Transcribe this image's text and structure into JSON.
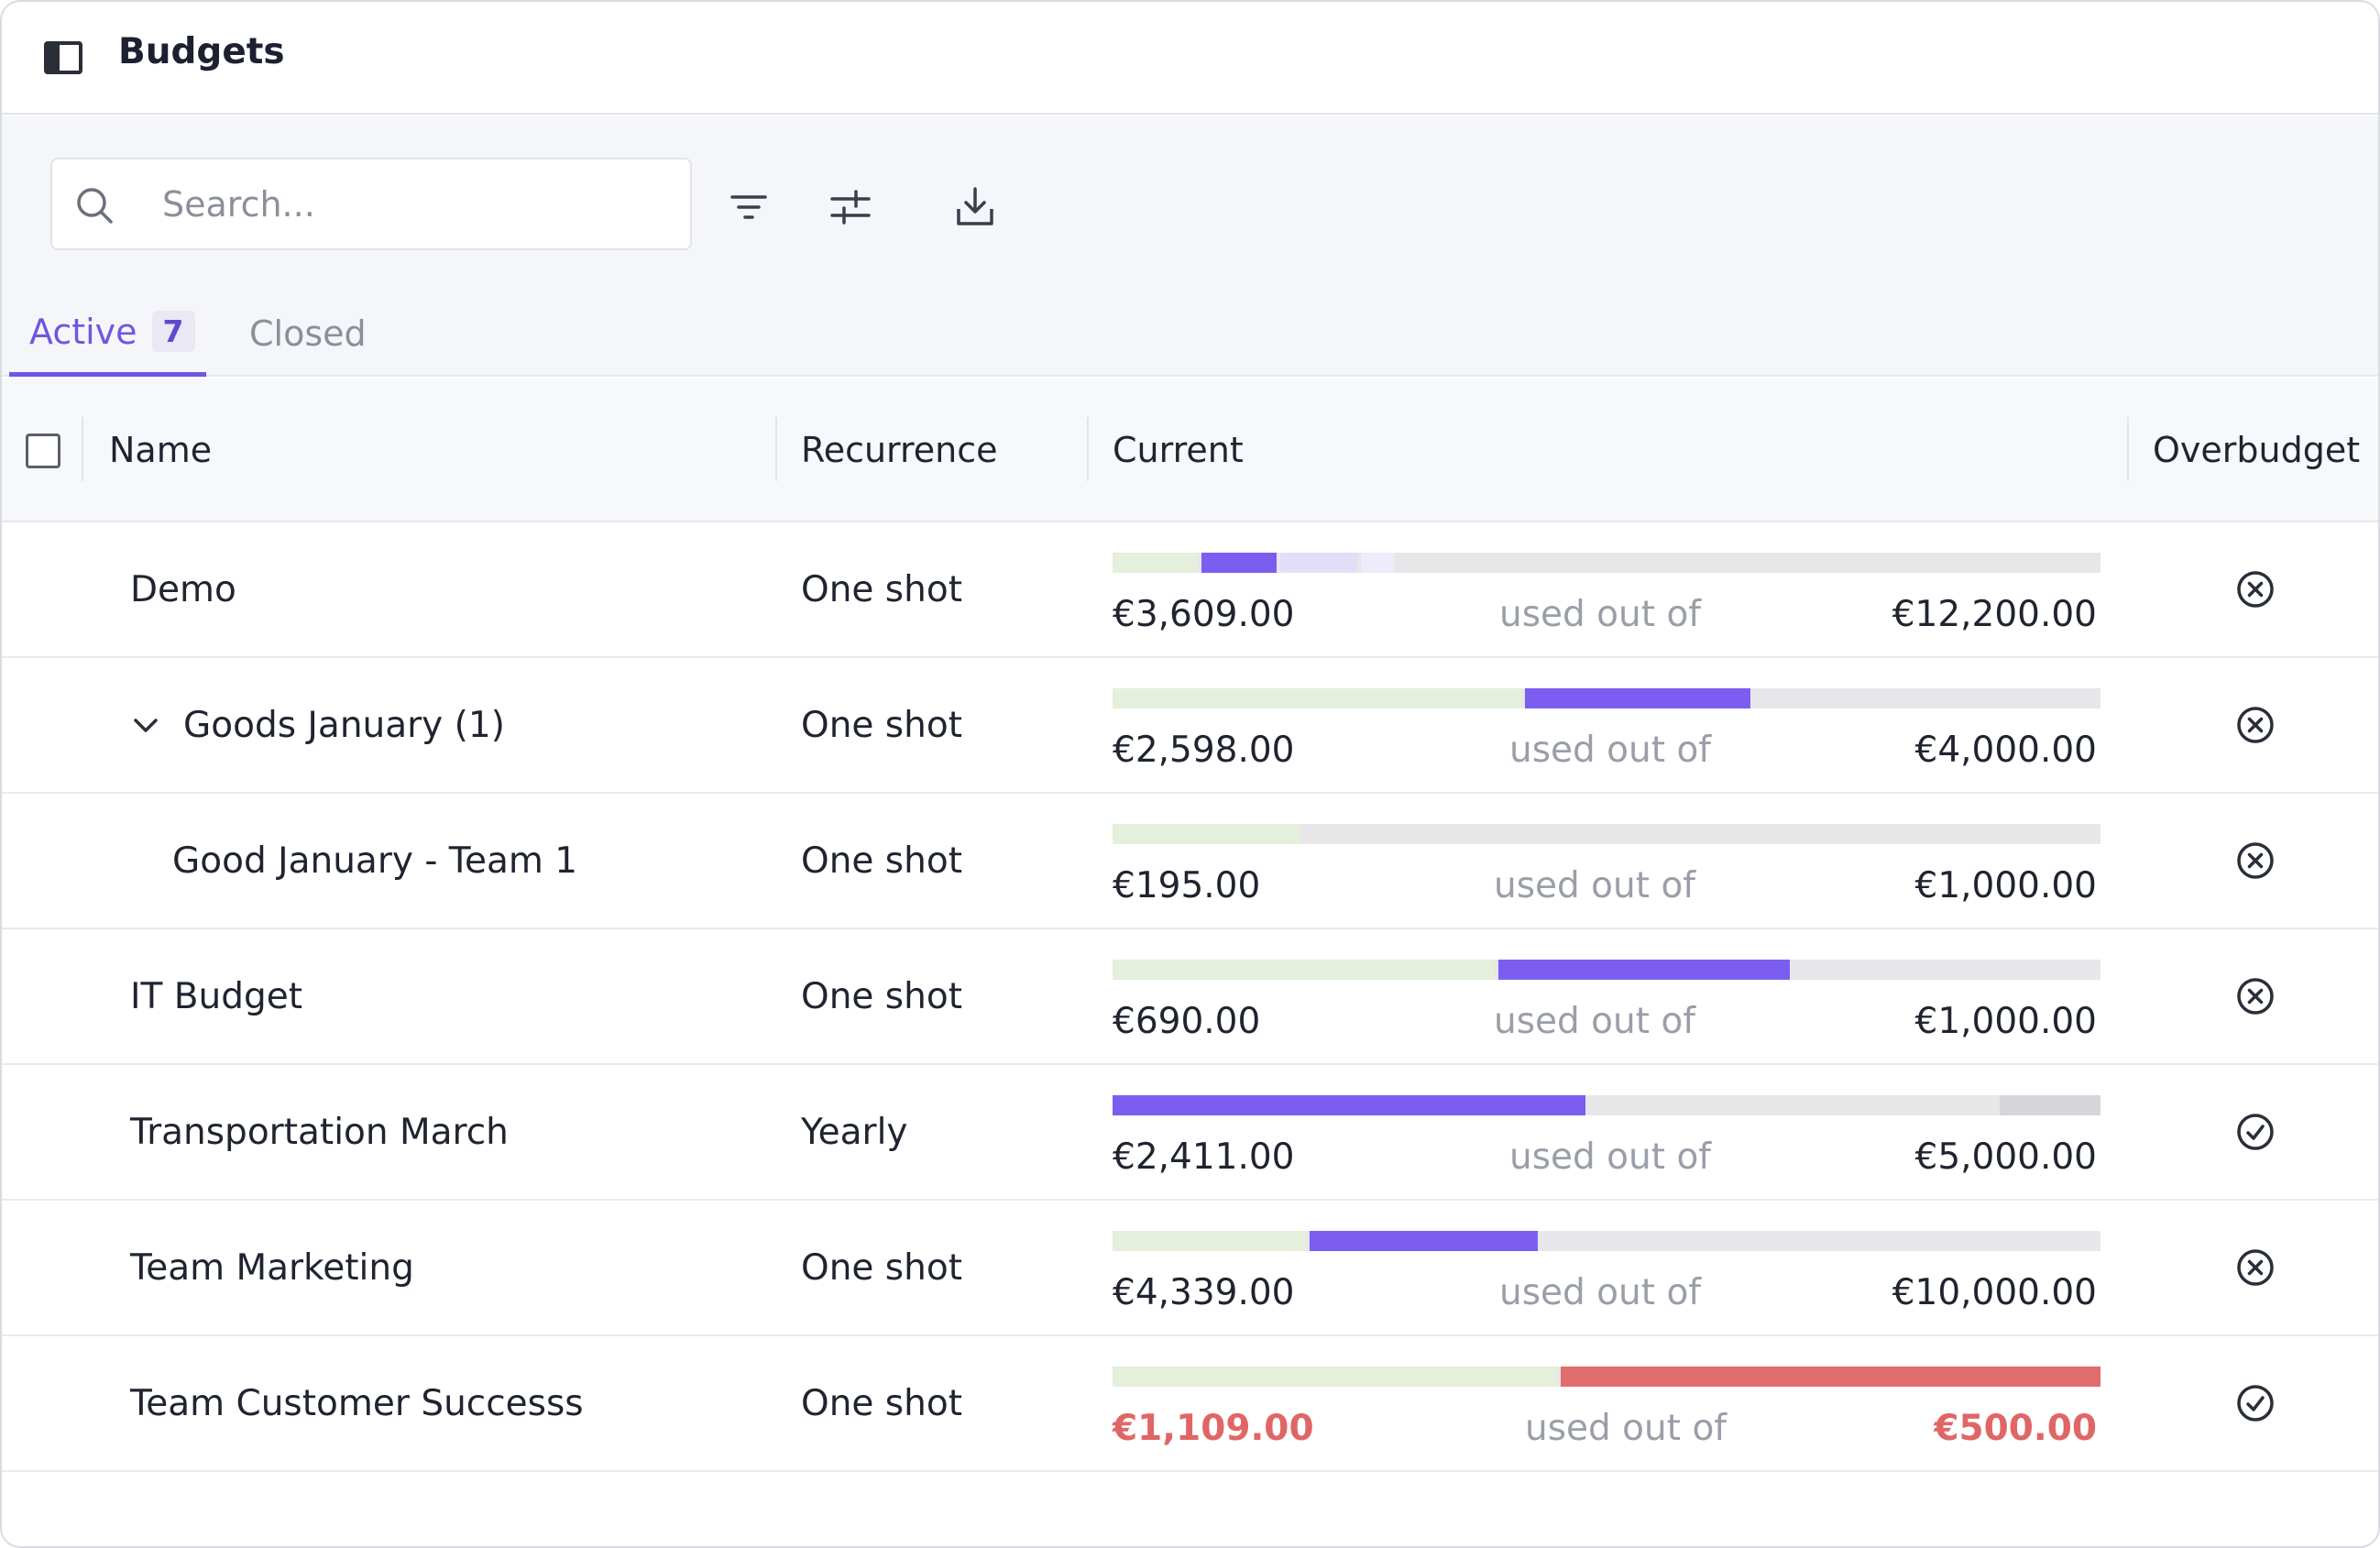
{
  "app": {
    "title": "Budgets"
  },
  "search": {
    "placeholder": "Search..."
  },
  "tabs": [
    {
      "label": "Active",
      "count": "7",
      "active": true
    },
    {
      "label": "Closed",
      "active": false
    }
  ],
  "columns": {
    "name": "Name",
    "recurrence": "Recurrence",
    "current": "Current",
    "overbudget": "Overbudget"
  },
  "colors": {
    "accent": "#6e57e0",
    "spent_light": "#e4efdc",
    "committed": "#7b5ef0",
    "pending": "#e3def8",
    "over": "#e06c6c",
    "track": "#e7e7e9"
  },
  "rows": [
    {
      "name": "Demo",
      "recurrence": "One shot",
      "current": "€3,609.00",
      "label": "used out of",
      "total": "€12,200.00",
      "status_icon": "x-circle-icon",
      "over": false
    },
    {
      "name": "Goods January (1)",
      "recurrence": "One shot",
      "current": "€2,598.00",
      "label": "used out of",
      "total": "€4,000.00",
      "status_icon": "x-circle-icon",
      "over": false,
      "expandable": true
    },
    {
      "name": "Good January - Team 1",
      "recurrence": "One shot",
      "current": "€195.00",
      "label": "used out of",
      "total": "€1,000.00",
      "status_icon": "x-circle-icon",
      "over": false
    },
    {
      "name": "IT Budget",
      "recurrence": "One shot",
      "current": "€690.00",
      "label": "used out of",
      "total": "€1,000.00",
      "status_icon": "x-circle-icon",
      "over": false
    },
    {
      "name": "Transportation March",
      "recurrence": "Yearly",
      "current": "€2,411.00",
      "label": "used out of",
      "total": "€5,000.00",
      "status_icon": "check-circle-icon",
      "over": false
    },
    {
      "name": "Team Marketing",
      "recurrence": "One shot",
      "current": "€4,339.00",
      "label": "used out of",
      "total": "€10,000.00",
      "status_icon": "x-circle-icon",
      "over": false
    },
    {
      "name": "Team Customer Successs",
      "recurrence": "One shot",
      "current": "€1,109.00",
      "label": "used out of",
      "total": "€500.00",
      "status_icon": "check-circle-icon",
      "over": true
    }
  ]
}
